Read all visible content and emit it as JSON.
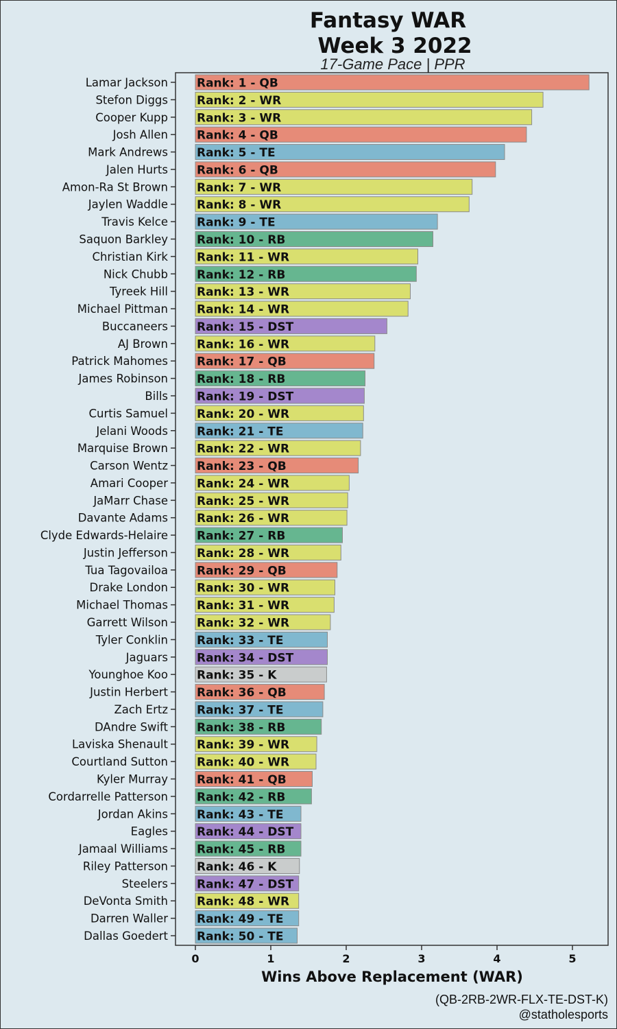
{
  "chart_data": {
    "type": "bar",
    "orientation": "horizontal",
    "title": "Fantasy WAR",
    "title_line2": "Week 3 2022",
    "subtitle": "17-Game Pace | PPR",
    "xlabel": "Wins Above Replacement (WAR)",
    "caption_line1": "(QB-2RB-2WR-FLX-TE-DST-K)",
    "caption_line2": "@statholesports",
    "xlim": [
      -0.26,
      5.46
    ],
    "xticks": [
      "0",
      "1",
      "2",
      "3",
      "4",
      "5"
    ],
    "grid": false,
    "position_colors": {
      "QB": "#e68b78",
      "WR": "#d9df6f",
      "TE": "#80b8cf",
      "RB": "#66b690",
      "DST": "#a487cc",
      "K": "#c9cccc"
    },
    "bar_label_prefix": "Rank: ",
    "players": [
      {
        "name": "Lamar Jackson",
        "rank": 1,
        "pos": "QB",
        "war": 5.22
      },
      {
        "name": "Stefon Diggs",
        "rank": 2,
        "pos": "WR",
        "war": 4.61
      },
      {
        "name": "Cooper Kupp",
        "rank": 3,
        "pos": "WR",
        "war": 4.46
      },
      {
        "name": "Josh Allen",
        "rank": 4,
        "pos": "QB",
        "war": 4.39
      },
      {
        "name": "Mark Andrews",
        "rank": 5,
        "pos": "TE",
        "war": 4.1
      },
      {
        "name": "Jalen Hurts",
        "rank": 6,
        "pos": "QB",
        "war": 3.98
      },
      {
        "name": "Amon-Ra St Brown",
        "rank": 7,
        "pos": "WR",
        "war": 3.67
      },
      {
        "name": "Jaylen Waddle",
        "rank": 8,
        "pos": "WR",
        "war": 3.63
      },
      {
        "name": "Travis Kelce",
        "rank": 9,
        "pos": "TE",
        "war": 3.21
      },
      {
        "name": "Saquon Barkley",
        "rank": 10,
        "pos": "RB",
        "war": 3.15
      },
      {
        "name": "Christian Kirk",
        "rank": 11,
        "pos": "WR",
        "war": 2.95
      },
      {
        "name": "Nick Chubb",
        "rank": 12,
        "pos": "RB",
        "war": 2.93
      },
      {
        "name": "Tyreek Hill",
        "rank": 13,
        "pos": "WR",
        "war": 2.85
      },
      {
        "name": "Michael Pittman",
        "rank": 14,
        "pos": "WR",
        "war": 2.82
      },
      {
        "name": "Buccaneers",
        "rank": 15,
        "pos": "DST",
        "war": 2.54
      },
      {
        "name": "AJ Brown",
        "rank": 16,
        "pos": "WR",
        "war": 2.38
      },
      {
        "name": "Patrick Mahomes",
        "rank": 17,
        "pos": "QB",
        "war": 2.37
      },
      {
        "name": "James Robinson",
        "rank": 18,
        "pos": "RB",
        "war": 2.25
      },
      {
        "name": "Bills",
        "rank": 19,
        "pos": "DST",
        "war": 2.24
      },
      {
        "name": "Curtis Samuel",
        "rank": 20,
        "pos": "WR",
        "war": 2.23
      },
      {
        "name": "Jelani Woods",
        "rank": 21,
        "pos": "TE",
        "war": 2.22
      },
      {
        "name": "Marquise Brown",
        "rank": 22,
        "pos": "WR",
        "war": 2.19
      },
      {
        "name": "Carson Wentz",
        "rank": 23,
        "pos": "QB",
        "war": 2.16
      },
      {
        "name": "Amari Cooper",
        "rank": 24,
        "pos": "WR",
        "war": 2.04
      },
      {
        "name": "JaMarr Chase",
        "rank": 25,
        "pos": "WR",
        "war": 2.02
      },
      {
        "name": "Davante Adams",
        "rank": 26,
        "pos": "WR",
        "war": 2.01
      },
      {
        "name": "Clyde Edwards-Helaire",
        "rank": 27,
        "pos": "RB",
        "war": 1.95
      },
      {
        "name": "Justin Jefferson",
        "rank": 28,
        "pos": "WR",
        "war": 1.93
      },
      {
        "name": "Tua Tagovailoa",
        "rank": 29,
        "pos": "QB",
        "war": 1.88
      },
      {
        "name": "Drake London",
        "rank": 30,
        "pos": "WR",
        "war": 1.85
      },
      {
        "name": "Michael Thomas",
        "rank": 31,
        "pos": "WR",
        "war": 1.84
      },
      {
        "name": "Garrett Wilson",
        "rank": 32,
        "pos": "WR",
        "war": 1.79
      },
      {
        "name": "Tyler Conklin",
        "rank": 33,
        "pos": "TE",
        "war": 1.75
      },
      {
        "name": "Jaguars",
        "rank": 34,
        "pos": "DST",
        "war": 1.75
      },
      {
        "name": "Younghoe Koo",
        "rank": 35,
        "pos": "K",
        "war": 1.74
      },
      {
        "name": "Justin Herbert",
        "rank": 36,
        "pos": "QB",
        "war": 1.71
      },
      {
        "name": "Zach Ertz",
        "rank": 37,
        "pos": "TE",
        "war": 1.69
      },
      {
        "name": "DAndre Swift",
        "rank": 38,
        "pos": "RB",
        "war": 1.67
      },
      {
        "name": "Laviska Shenault",
        "rank": 39,
        "pos": "WR",
        "war": 1.61
      },
      {
        "name": "Courtland Sutton",
        "rank": 40,
        "pos": "WR",
        "war": 1.6
      },
      {
        "name": "Kyler Murray",
        "rank": 41,
        "pos": "QB",
        "war": 1.55
      },
      {
        "name": "Cordarrelle Patterson",
        "rank": 42,
        "pos": "RB",
        "war": 1.54
      },
      {
        "name": "Jordan Akins",
        "rank": 43,
        "pos": "TE",
        "war": 1.4
      },
      {
        "name": "Eagles",
        "rank": 44,
        "pos": "DST",
        "war": 1.4
      },
      {
        "name": "Jamaal Williams",
        "rank": 45,
        "pos": "RB",
        "war": 1.4
      },
      {
        "name": "Riley Patterson",
        "rank": 46,
        "pos": "K",
        "war": 1.38
      },
      {
        "name": "Steelers",
        "rank": 47,
        "pos": "DST",
        "war": 1.37
      },
      {
        "name": "DeVonta Smith",
        "rank": 48,
        "pos": "WR",
        "war": 1.37
      },
      {
        "name": "Darren Waller",
        "rank": 49,
        "pos": "TE",
        "war": 1.37
      },
      {
        "name": "Dallas Goedert",
        "rank": 50,
        "pos": "TE",
        "war": 1.35
      }
    ]
  }
}
